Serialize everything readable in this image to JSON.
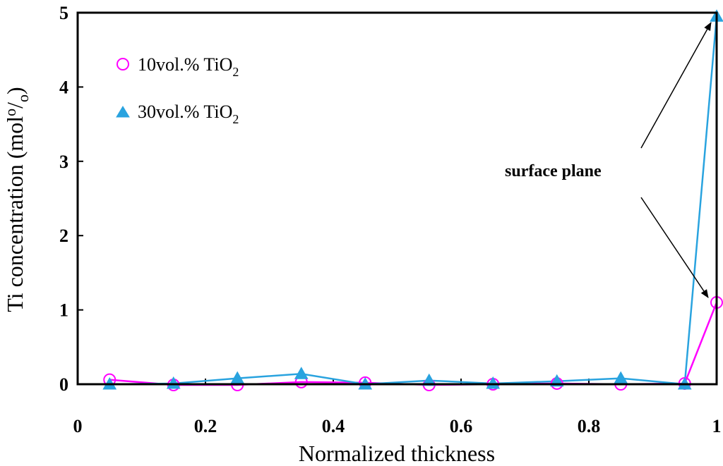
{
  "chart_data": {
    "type": "line",
    "xlabel": "Normalized thickness",
    "ylabel": "Ti concentration (mol%)",
    "xlim": [
      0,
      1
    ],
    "ylim": [
      0,
      5
    ],
    "x_ticks": [
      0,
      0.2,
      0.4,
      0.6,
      0.8,
      1
    ],
    "x_tick_labels": [
      "0",
      "0.2",
      "0.4",
      "0.6",
      "0.8",
      "1"
    ],
    "y_ticks": [
      0,
      1,
      2,
      3,
      4,
      5
    ],
    "y_tick_labels": [
      "0",
      "1",
      "2",
      "3",
      "4",
      "5"
    ],
    "x": [
      0.05,
      0.15,
      0.25,
      0.35,
      0.45,
      0.55,
      0.65,
      0.75,
      0.85,
      0.95,
      1.0
    ],
    "series": [
      {
        "name": "10vol.% TiO2",
        "label_main": "10vol.%  TiO",
        "label_sub": "2",
        "marker": "circle",
        "color": "#ff00ff",
        "values": [
          0.06,
          -0.01,
          -0.01,
          0.03,
          0.02,
          -0.01,
          0.0,
          0.01,
          0.0,
          0.01,
          1.1
        ]
      },
      {
        "name": "30vol.% TiO2",
        "label_main": "30vol.%  TiO",
        "label_sub": "2",
        "marker": "triangle",
        "color": "#29a3df",
        "values": [
          0.0,
          0.01,
          0.08,
          0.14,
          0.0,
          0.05,
          0.01,
          0.04,
          0.08,
          0.0,
          4.95
        ]
      }
    ],
    "annotation": {
      "text": "surface plane",
      "targets": [
        [
          1.0,
          4.95
        ],
        [
          1.0,
          1.1
        ]
      ]
    },
    "grid": false,
    "legend": "top-left"
  }
}
